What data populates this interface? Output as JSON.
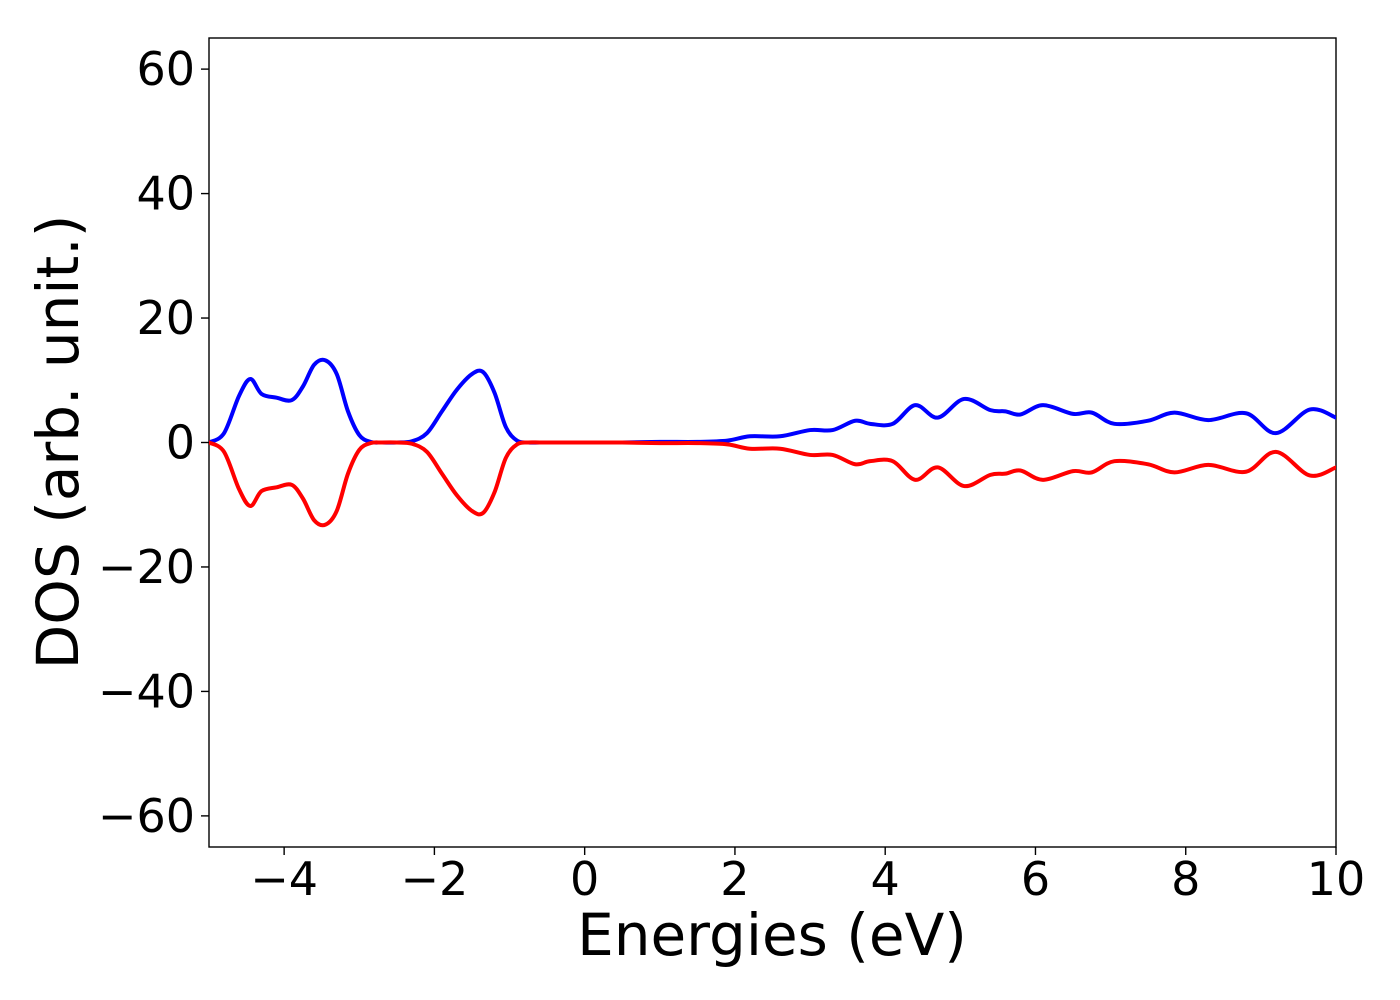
{
  "chart_data": {
    "type": "line",
    "title": "",
    "xlabel": "Energies (eV)",
    "ylabel": "DOS (arb. unit.)",
    "xlim": [
      -5,
      10
    ],
    "ylim": [
      -65,
      65
    ],
    "xticks": [
      -4,
      -2,
      0,
      2,
      4,
      6,
      8,
      10
    ],
    "yticks": [
      -60,
      -40,
      -20,
      0,
      20,
      40,
      60
    ],
    "xtick_labels": [
      "−4",
      "−2",
      "0",
      "2",
      "4",
      "6",
      "8",
      "10"
    ],
    "ytick_labels": [
      "−60",
      "−40",
      "−20",
      "0",
      "20",
      "40",
      "60"
    ],
    "grid": false,
    "legend": "none",
    "series": [
      {
        "color": "#0000ff",
        "x": [
          -5.0,
          -4.8,
          -4.6,
          -4.45,
          -4.3,
          -4.1,
          -3.9,
          -3.75,
          -3.6,
          -3.45,
          -3.3,
          -3.15,
          -3.0,
          -2.85,
          -2.7,
          -2.5,
          -2.3,
          -2.1,
          -1.9,
          -1.7,
          -1.5,
          -1.35,
          -1.2,
          -1.05,
          -0.9,
          -0.75,
          -0.6,
          -0.4,
          0.0,
          0.5,
          1.0,
          1.5,
          1.9,
          2.2,
          2.6,
          3.0,
          3.3,
          3.6,
          3.8,
          4.1,
          4.4,
          4.7,
          5.05,
          5.4,
          5.6,
          5.8,
          6.1,
          6.5,
          6.75,
          7.05,
          7.5,
          7.85,
          8.3,
          8.8,
          9.2,
          9.65,
          10.0
        ],
        "y": [
          0.0,
          1.5,
          7.5,
          10.2,
          7.8,
          7.2,
          6.8,
          9.0,
          12.5,
          13.2,
          11.0,
          5.0,
          1.2,
          0.1,
          0.0,
          0.0,
          0.2,
          1.5,
          5.0,
          8.5,
          11.0,
          11.3,
          8.0,
          2.5,
          0.3,
          0.0,
          0.0,
          0.0,
          0.0,
          0.0,
          0.1,
          0.1,
          0.3,
          1.0,
          1.0,
          2.0,
          2.0,
          3.5,
          3.0,
          3.0,
          6.0,
          4.0,
          7.0,
          5.2,
          5.0,
          4.5,
          6.0,
          4.6,
          4.8,
          3.0,
          3.5,
          4.8,
          3.6,
          4.7,
          1.5,
          5.3,
          4.0
        ]
      },
      {
        "color": "#ff0000",
        "x": [
          -5.0,
          -4.8,
          -4.6,
          -4.45,
          -4.3,
          -4.1,
          -3.9,
          -3.75,
          -3.6,
          -3.45,
          -3.3,
          -3.15,
          -3.0,
          -2.85,
          -2.7,
          -2.5,
          -2.3,
          -2.1,
          -1.9,
          -1.7,
          -1.5,
          -1.35,
          -1.2,
          -1.05,
          -0.9,
          -0.75,
          -0.6,
          -0.4,
          0.0,
          0.5,
          1.0,
          1.5,
          1.9,
          2.2,
          2.6,
          3.0,
          3.3,
          3.6,
          3.8,
          4.1,
          4.4,
          4.7,
          5.05,
          5.4,
          5.6,
          5.8,
          6.1,
          6.5,
          6.75,
          7.05,
          7.5,
          7.85,
          8.3,
          8.8,
          9.2,
          9.65,
          10.0
        ],
        "y": [
          0.0,
          -1.5,
          -7.5,
          -10.2,
          -7.8,
          -7.2,
          -6.8,
          -9.0,
          -12.5,
          -13.2,
          -11.0,
          -5.0,
          -1.2,
          -0.1,
          0.0,
          0.0,
          -0.2,
          -1.5,
          -5.0,
          -8.5,
          -11.0,
          -11.3,
          -8.0,
          -2.5,
          -0.3,
          0.0,
          0.0,
          0.0,
          0.0,
          0.0,
          -0.1,
          -0.1,
          -0.3,
          -1.0,
          -1.0,
          -2.0,
          -2.0,
          -3.5,
          -3.0,
          -3.0,
          -6.0,
          -4.0,
          -7.0,
          -5.2,
          -5.0,
          -4.5,
          -6.0,
          -4.6,
          -4.8,
          -3.0,
          -3.5,
          -4.8,
          -3.6,
          -4.7,
          -1.5,
          -5.3,
          -4.0
        ]
      }
    ]
  }
}
